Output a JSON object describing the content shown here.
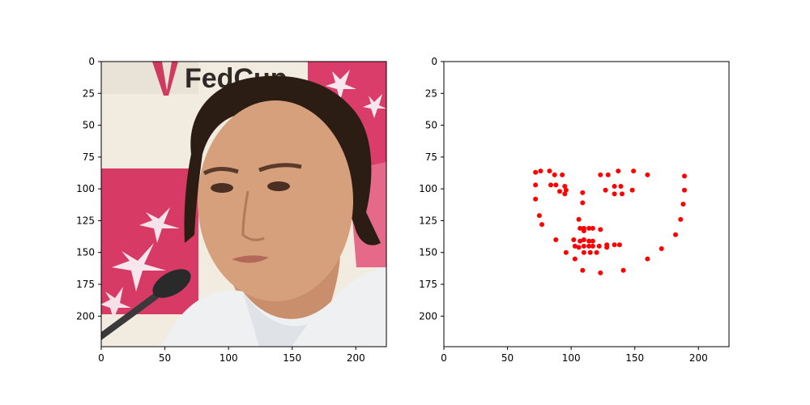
{
  "chart_data": [
    {
      "type": "image",
      "image_content": "photo of a woman's face; dark hair pulled back; red and white banner background with 'FedCup' lettering; microphone in lower-left",
      "image_logo_text": "FedCup",
      "colors": {
        "background_left": "#f1ecdf",
        "banner_pink": "#d83a66",
        "skin": "#d6a07c",
        "hair": "#2b1c14",
        "jacket": "#eef0f2"
      },
      "xlim": [
        0,
        224
      ],
      "ylim": [
        224,
        0
      ],
      "xticks": [
        0,
        50,
        100,
        150,
        200
      ],
      "yticks": [
        0,
        25,
        50,
        75,
        100,
        125,
        150,
        175,
        200
      ],
      "xtick_labels": [
        "0",
        "50",
        "100",
        "150",
        "200"
      ],
      "ytick_labels": [
        "0",
        "25",
        "50",
        "75",
        "100",
        "125",
        "150",
        "175",
        "200"
      ]
    },
    {
      "type": "scatter",
      "xlim": [
        0,
        224
      ],
      "ylim": [
        224,
        0
      ],
      "xticks": [
        0,
        50,
        100,
        150,
        200
      ],
      "yticks": [
        0,
        25,
        50,
        75,
        100,
        125,
        150,
        175,
        200
      ],
      "xtick_labels": [
        "0",
        "50",
        "100",
        "150",
        "200"
      ],
      "ytick_labels": [
        "0",
        "25",
        "50",
        "75",
        "100",
        "125",
        "150",
        "175",
        "200"
      ],
      "marker_color": "#ff0000",
      "points": [
        [
          72,
          87
        ],
        [
          76,
          86
        ],
        [
          83,
          86
        ],
        [
          87,
          89
        ],
        [
          93,
          89
        ],
        [
          72,
          97
        ],
        [
          84,
          97
        ],
        [
          88,
          97
        ],
        [
          95,
          98
        ],
        [
          96,
          101
        ],
        [
          91,
          102
        ],
        [
          95,
          104
        ],
        [
          72,
          108
        ],
        [
          75,
          121
        ],
        [
          77,
          128
        ],
        [
          109,
          103
        ],
        [
          109,
          111
        ],
        [
          106,
          124
        ],
        [
          107,
          131
        ],
        [
          110,
          131
        ],
        [
          110,
          133
        ],
        [
          114,
          131
        ],
        [
          117,
          131
        ],
        [
          123,
          132
        ],
        [
          102,
          140
        ],
        [
          103,
          145
        ],
        [
          107,
          141
        ],
        [
          106,
          146
        ],
        [
          110,
          140
        ],
        [
          110,
          145
        ],
        [
          114,
          141
        ],
        [
          114,
          145
        ],
        [
          117,
          141
        ],
        [
          117,
          145
        ],
        [
          122,
          145
        ],
        [
          128,
          144
        ],
        [
          128,
          146
        ],
        [
          134,
          144
        ],
        [
          138,
          144
        ],
        [
          110,
          150
        ],
        [
          115,
          150
        ],
        [
          120,
          150
        ],
        [
          103,
          155
        ],
        [
          96,
          150
        ],
        [
          88,
          140
        ],
        [
          109,
          164
        ],
        [
          123,
          166
        ],
        [
          141,
          164
        ],
        [
          123,
          89
        ],
        [
          129,
          89
        ],
        [
          137,
          86
        ],
        [
          149,
          86
        ],
        [
          160,
          89
        ],
        [
          127,
          101
        ],
        [
          134,
          98
        ],
        [
          139,
          98
        ],
        [
          134,
          104
        ],
        [
          140,
          104
        ],
        [
          148,
          101
        ],
        [
          189,
          90
        ],
        [
          189,
          101
        ],
        [
          188,
          112
        ],
        [
          186,
          124
        ],
        [
          182,
          136
        ],
        [
          171,
          147
        ],
        [
          160,
          155
        ]
      ]
    }
  ]
}
